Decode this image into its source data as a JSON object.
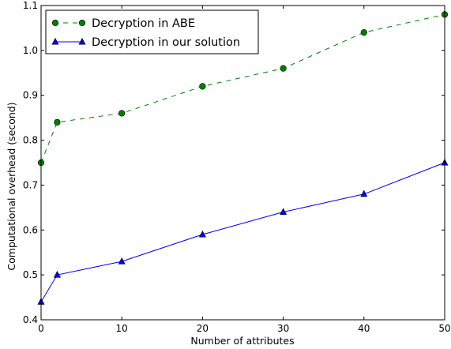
{
  "chart_data": {
    "type": "line",
    "title": "",
    "xlabel": "Number of attributes",
    "ylabel": "Computational overhead (second)",
    "xlim": [
      0,
      50
    ],
    "ylim": [
      0.4,
      1.1
    ],
    "x_ticks": [
      "0",
      "10",
      "20",
      "30",
      "40",
      "50"
    ],
    "y_ticks": [
      "0.4",
      "0.5",
      "0.6",
      "0.7",
      "0.8",
      "0.9",
      "1.0",
      "1.1"
    ],
    "grid": false,
    "legend_position": "top-left",
    "series": [
      {
        "name": "Decryption in ABE",
        "color": "#008000",
        "line_style": "dashed",
        "marker": "circle",
        "x": [
          0,
          2,
          10,
          20,
          30,
          40,
          50
        ],
        "y": [
          0.75,
          0.84,
          0.86,
          0.92,
          0.96,
          1.04,
          1.08
        ]
      },
      {
        "name": "Decryption in our solution",
        "color": "#0000ff",
        "line_style": "solid",
        "marker": "triangle",
        "x": [
          0,
          2,
          10,
          20,
          30,
          40,
          50
        ],
        "y": [
          0.44,
          0.5,
          0.53,
          0.59,
          0.64,
          0.68,
          0.75
        ]
      }
    ]
  }
}
